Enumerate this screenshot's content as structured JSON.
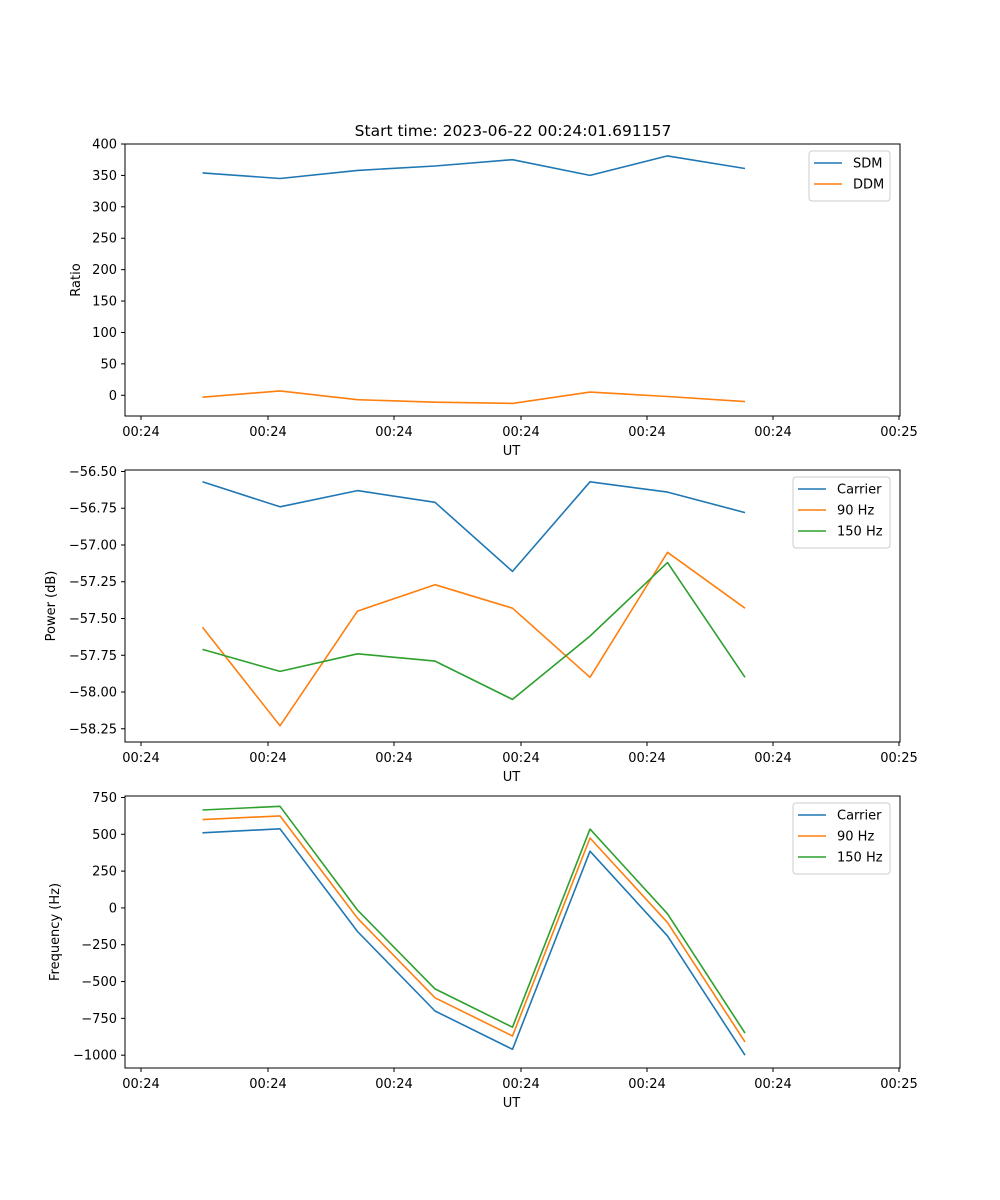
{
  "figure": {
    "title": "Start time: 2023-06-22 00:24:01.691157"
  },
  "chart_data": [
    {
      "type": "line",
      "title": "Start time: 2023-06-22 00:24:01.691157",
      "xlabel": "UT",
      "ylabel": "Ratio",
      "x_tick_labels": [
        "00:24",
        "00:24",
        "00:24",
        "00:24",
        "00:24",
        "00:24",
        "00:24"
      ],
      "x_tick_last_label": "00:25",
      "x": [
        1,
        2,
        3,
        4,
        5,
        6,
        7,
        8
      ],
      "xlim": [
        0,
        10
      ],
      "ylim": [
        -33,
        400
      ],
      "y_ticks": [
        0,
        50,
        100,
        150,
        200,
        250,
        300,
        350,
        400
      ],
      "grid": false,
      "legend_position": "top-right",
      "series": [
        {
          "name": "SDM",
          "color": "#1f77b4",
          "values": [
            354,
            345,
            358,
            365,
            375,
            350,
            381,
            361
          ]
        },
        {
          "name": "DDM",
          "color": "#ff7f0e",
          "values": [
            -3,
            7,
            -7,
            -11,
            -13,
            5,
            -2,
            -10
          ]
        }
      ]
    },
    {
      "type": "line",
      "title": "",
      "xlabel": "UT",
      "ylabel": "Power (dB)",
      "x_tick_labels": [
        "00:24",
        "00:24",
        "00:24",
        "00:24",
        "00:24",
        "00:24",
        "00:24"
      ],
      "x_tick_last_label": "00:25",
      "x": [
        1,
        2,
        3,
        4,
        5,
        6,
        7,
        8
      ],
      "xlim": [
        0,
        10
      ],
      "ylim": [
        -58.34,
        -56.49
      ],
      "y_ticks": [
        -58.25,
        -58.0,
        -57.75,
        -57.5,
        -57.25,
        -57.0,
        -56.75,
        -56.5
      ],
      "y_tick_labels": [
        "−58.25",
        "−58.00",
        "−57.75",
        "−57.50",
        "−57.25",
        "−57.00",
        "−56.75",
        "−56.50"
      ],
      "grid": false,
      "legend_position": "top-right",
      "series": [
        {
          "name": "Carrier",
          "color": "#1f77b4",
          "values": [
            -56.57,
            -56.74,
            -56.63,
            -56.71,
            -57.18,
            -56.57,
            -56.64,
            -56.78
          ]
        },
        {
          "name": "90 Hz",
          "color": "#ff7f0e",
          "values": [
            -57.56,
            -58.23,
            -57.45,
            -57.27,
            -57.43,
            -57.9,
            -57.05,
            -57.43
          ]
        },
        {
          "name": "150 Hz",
          "color": "#2ca02c",
          "values": [
            -57.71,
            -57.86,
            -57.74,
            -57.79,
            -58.05,
            -57.62,
            -57.12,
            -57.9
          ]
        }
      ]
    },
    {
      "type": "line",
      "title": "",
      "xlabel": "UT",
      "ylabel": "Frequency (Hz)",
      "x_tick_labels": [
        "00:24",
        "00:24",
        "00:24",
        "00:24",
        "00:24",
        "00:24",
        "00:24"
      ],
      "x_tick_last_label": "00:25",
      "x": [
        1,
        2,
        3,
        4,
        5,
        6,
        7,
        8
      ],
      "xlim": [
        0,
        10
      ],
      "ylim": [
        -1087,
        760
      ],
      "y_ticks": [
        -1000,
        -750,
        -500,
        -250,
        0,
        250,
        500,
        750
      ],
      "y_tick_labels": [
        "−1000",
        "−750",
        "−500",
        "−250",
        "0",
        "250",
        "500",
        "750"
      ],
      "grid": false,
      "legend_position": "top-right",
      "series": [
        {
          "name": "Carrier",
          "color": "#1f77b4",
          "values": [
            510,
            537,
            -160,
            -700,
            -960,
            385,
            -190,
            -1000
          ]
        },
        {
          "name": "90 Hz",
          "color": "#ff7f0e",
          "values": [
            600,
            625,
            -70,
            -610,
            -870,
            475,
            -100,
            -910
          ]
        },
        {
          "name": "150 Hz",
          "color": "#2ca02c",
          "values": [
            665,
            690,
            -15,
            -550,
            -810,
            535,
            -40,
            -850
          ]
        }
      ]
    }
  ]
}
